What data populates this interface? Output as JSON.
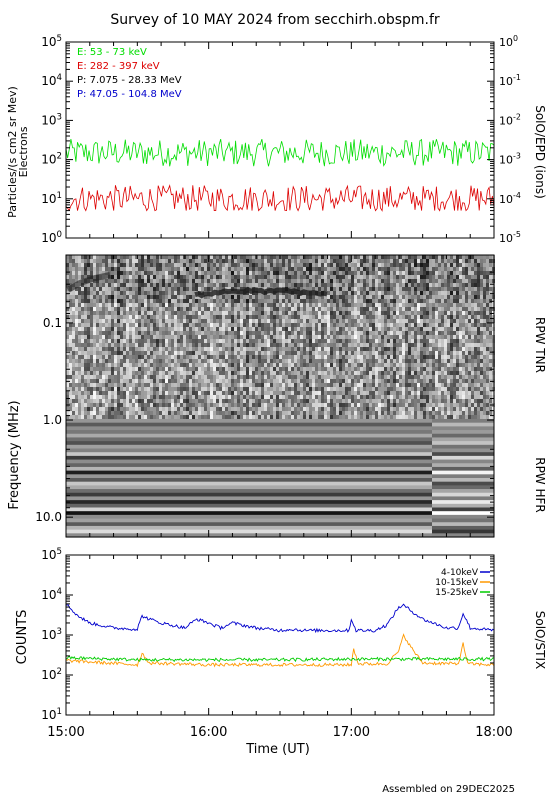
{
  "page": {
    "title": "Survey of 10 MAY 2024 from secchirh.obspm.fr",
    "footer": "Assembled on 29DEC2025"
  },
  "chart_data": [
    {
      "type": "line",
      "panel": "SolO/EPD",
      "ylabel_left": "Particles/(s cm2 sr Mev)",
      "ylabel_left2": "Electrons",
      "ylabel_right": "SolO/EPD (ions)",
      "yscale": "log",
      "ylim": [
        1,
        100000
      ],
      "ylim_right": [
        1e-05,
        1
      ],
      "yticks_left": [
        "10^0",
        "10^1",
        "10^2",
        "10^3",
        "10^4",
        "10^5"
      ],
      "yticks_right": [
        "10^-5",
        "10^-4",
        "10^-3",
        "10^-2",
        "10^-1",
        "10^0"
      ],
      "x_range": [
        "15:00",
        "18:00"
      ],
      "legend": [
        {
          "label": "E: 53 - 73 keV",
          "color": "#00dd00"
        },
        {
          "label": "E: 282 - 397 keV",
          "color": "#dd0000"
        },
        {
          "label": "P: 7.075 - 28.33 MeV",
          "color": "#000000"
        },
        {
          "label": "P: 47.05 - 104.8 MeV",
          "color": "#0000cc"
        }
      ],
      "series": [
        {
          "name": "E: 53 - 73 keV",
          "color": "#00dd00",
          "typical_value": 150,
          "min": 40,
          "max": 400
        },
        {
          "name": "E: 282 - 397 keV",
          "color": "#dd0000",
          "typical_value": 10,
          "min": 5,
          "max": 30
        }
      ]
    },
    {
      "type": "heatmap",
      "panel": "RPW",
      "ylabel": "Frequency (MHz)",
      "yscale": "log",
      "ylim": [
        0.02,
        16
      ],
      "yticks": [
        "0.1",
        "1.0",
        "10.0"
      ],
      "labels_right": [
        "RPW TNR",
        "RPW HFR"
      ],
      "x_range": [
        "15:00",
        "18:00"
      ]
    },
    {
      "type": "line",
      "panel": "SolO/STIX",
      "ylabel": "COUNTS",
      "ylabel_right": "SolO/STIX",
      "yscale": "log",
      "ylim": [
        10,
        100000
      ],
      "yticks": [
        "10^1",
        "10^2",
        "10^3",
        "10^4",
        "10^5"
      ],
      "xlabel": "Time (UT)",
      "xticks": [
        "15:00",
        "16:00",
        "17:00",
        "18:00"
      ],
      "x_range": [
        "15:00",
        "18:00"
      ],
      "series": [
        {
          "name": "4-10keV",
          "color": "#0000cc",
          "x": [
            "15:00",
            "15:05",
            "15:10",
            "15:20",
            "15:30",
            "15:32",
            "15:35",
            "15:40",
            "15:50",
            "15:55",
            "16:00",
            "16:05",
            "16:10",
            "16:20",
            "16:30",
            "16:35",
            "16:40",
            "16:50",
            "16:59",
            "17:00",
            "17:02",
            "17:10",
            "17:15",
            "17:20",
            "17:22",
            "17:30",
            "17:40",
            "17:45",
            "17:47",
            "17:50",
            "18:00"
          ],
          "values": [
            6000,
            3000,
            2000,
            1500,
            1400,
            3000,
            2500,
            2000,
            1500,
            2500,
            2000,
            1500,
            2000,
            1500,
            1300,
            1400,
            1300,
            1300,
            1300,
            2500,
            1300,
            1300,
            1800,
            5000,
            5500,
            2500,
            1500,
            1500,
            3500,
            1500,
            1300
          ]
        },
        {
          "name": "10-15keV",
          "color": "#ff9900",
          "x": [
            "15:00",
            "15:30",
            "15:32",
            "15:35",
            "16:00",
            "16:30",
            "17:00",
            "17:01",
            "17:03",
            "17:15",
            "17:20",
            "17:22",
            "17:25",
            "17:30",
            "17:45",
            "17:47",
            "17:49",
            "18:00"
          ],
          "values": [
            230,
            180,
            350,
            200,
            180,
            180,
            180,
            450,
            190,
            190,
            400,
            1000,
            500,
            200,
            190,
            600,
            190,
            180
          ]
        },
        {
          "name": "15-25keV",
          "color": "#00cc00",
          "x": [
            "15:00",
            "15:30",
            "16:00",
            "16:30",
            "17:00",
            "17:30",
            "18:00"
          ],
          "values": [
            270,
            240,
            240,
            240,
            250,
            250,
            250
          ]
        }
      ]
    }
  ]
}
